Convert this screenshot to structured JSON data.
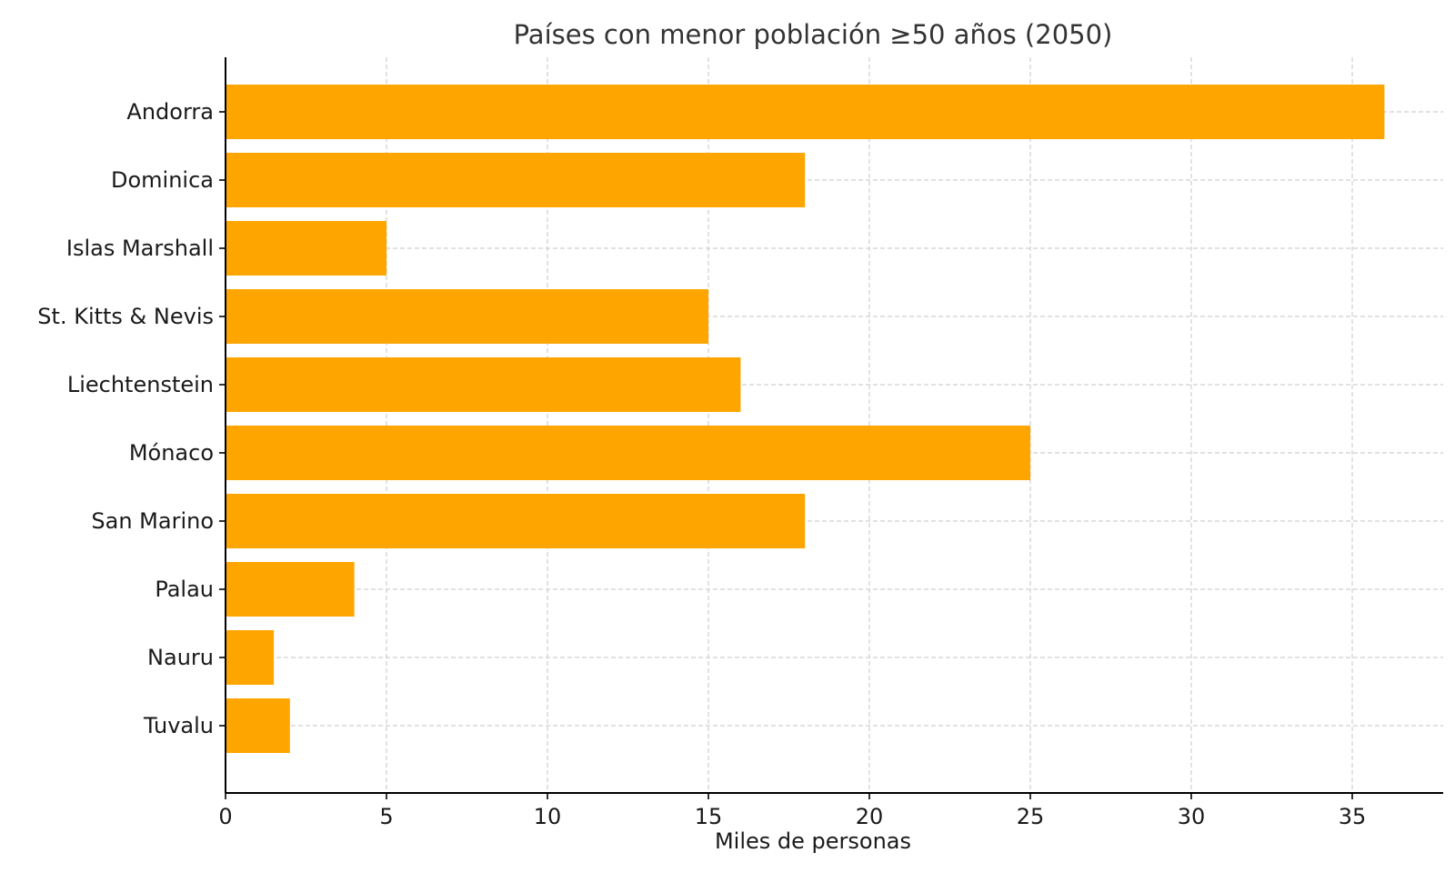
{
  "chart_data": {
    "type": "bar",
    "orientation": "horizontal",
    "title": "Países con menor población ≥50 años (2050)",
    "xlabel": "Miles de personas",
    "ylabel": "",
    "categories": [
      "Andorra",
      "Dominica",
      "Islas Marshall",
      "St. Kitts & Nevis",
      "Liechtenstein",
      "Mónaco",
      "San Marino",
      "Palau",
      "Nauru",
      "Tuvalu"
    ],
    "values": [
      36,
      18,
      5,
      15,
      16,
      25,
      18,
      4,
      1.5,
      2
    ],
    "xlim": [
      0,
      37.8
    ],
    "xticks": [
      0,
      5,
      10,
      15,
      20,
      25,
      30,
      35
    ],
    "bar_color": "#FFA500",
    "grid": true,
    "legend": "none"
  }
}
